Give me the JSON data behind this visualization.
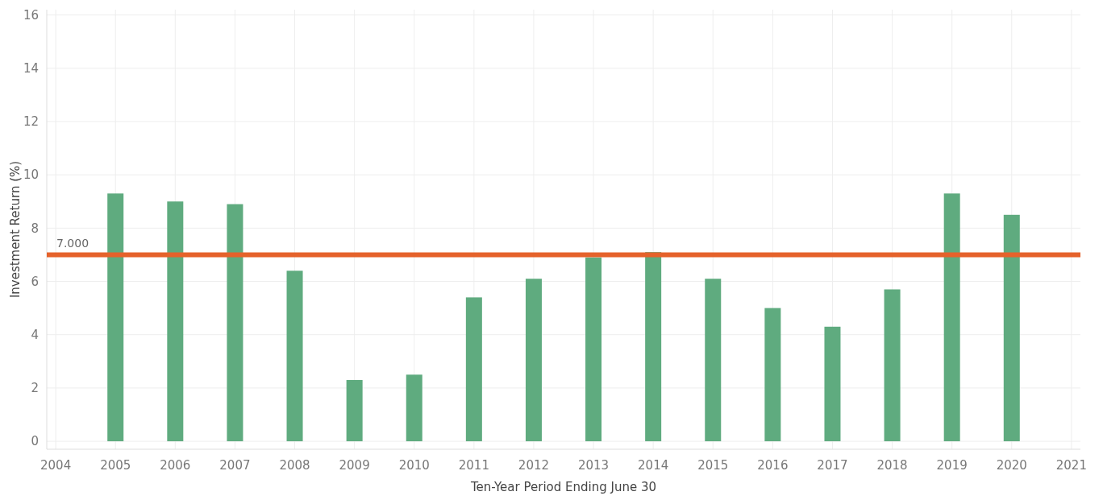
{
  "chart_data": {
    "type": "bar",
    "xlabel": "Ten-Year Period Ending June 30",
    "ylabel": "Investment Return (%)",
    "x": [
      2005,
      2006,
      2007,
      2008,
      2009,
      2010,
      2011,
      2012,
      2013,
      2014,
      2015,
      2016,
      2017,
      2018,
      2019,
      2020
    ],
    "values": [
      9.3,
      9.0,
      8.9,
      6.4,
      2.3,
      2.5,
      5.4,
      6.1,
      6.9,
      7.1,
      6.1,
      5.0,
      4.3,
      5.7,
      9.3,
      8.5
    ],
    "color": "#5fab7f",
    "xlim": [
      2003.85,
      2021.15
    ],
    "xticks": [
      2004,
      2005,
      2006,
      2007,
      2008,
      2009,
      2010,
      2011,
      2012,
      2013,
      2014,
      2015,
      2016,
      2017,
      2018,
      2019,
      2020,
      2021
    ],
    "ylim": [
      -0.3,
      16.2
    ],
    "yticks": [
      0,
      2,
      4,
      6,
      8,
      10,
      12,
      14,
      16
    ],
    "ref_lines": [
      {
        "axis": "y",
        "value": 7,
        "label": "7.000",
        "color": "#e5622b"
      }
    ],
    "grid": true
  }
}
